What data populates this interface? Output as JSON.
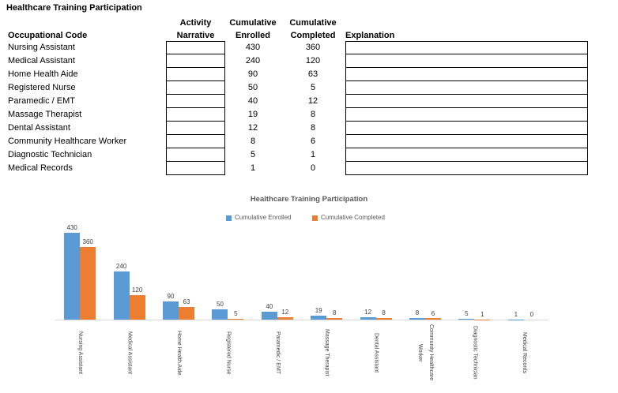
{
  "title": "Healthcare Training Participation",
  "table": {
    "headers": {
      "occupational_code": "Occupational Code",
      "activity_line1": "Activity",
      "activity_line2": "Narrative",
      "enrolled_line1": "Cumulative",
      "enrolled_line2": "Enrolled",
      "completed_line1": "Cumulative",
      "completed_line2": "Completed",
      "explanation": "Explanation"
    },
    "rows": [
      {
        "code": "Nursing Assistant",
        "enrolled": "430",
        "completed": "360",
        "narrative": "",
        "explanation": ""
      },
      {
        "code": "Medical Assistant",
        "enrolled": "240",
        "completed": "120",
        "narrative": "",
        "explanation": ""
      },
      {
        "code": "Home Health Aide",
        "enrolled": "90",
        "completed": "63",
        "narrative": "",
        "explanation": ""
      },
      {
        "code": "Registered Nurse",
        "enrolled": "50",
        "completed": "5",
        "narrative": "",
        "explanation": ""
      },
      {
        "code": "Paramedic / EMT",
        "enrolled": "40",
        "completed": "12",
        "narrative": "",
        "explanation": ""
      },
      {
        "code": "Massage Therapist",
        "enrolled": "19",
        "completed": "8",
        "narrative": "",
        "explanation": ""
      },
      {
        "code": "Dental Assistant",
        "enrolled": "12",
        "completed": "8",
        "narrative": "",
        "explanation": ""
      },
      {
        "code": "Community Healthcare Worker",
        "enrolled": "8",
        "completed": "6",
        "narrative": "",
        "explanation": ""
      },
      {
        "code": "Diagnostic Technician",
        "enrolled": "5",
        "completed": "1",
        "narrative": "",
        "explanation": ""
      },
      {
        "code": "Medical Records",
        "enrolled": "1",
        "completed": "0",
        "narrative": "",
        "explanation": ""
      }
    ]
  },
  "chart_data": {
    "type": "bar",
    "title": "Healthcare Training Participation",
    "categories": [
      "Nursing Assistant",
      "Medical Assistant",
      "Home Health Aide",
      "Registered Nurse",
      "Paramedic / EMT",
      "Massage Therapist",
      "Dental Assistant",
      "Community Healthcare Worker",
      "Diagnostic Technician",
      "Medical Records"
    ],
    "series": [
      {
        "name": "Cumulative Enrolled",
        "color": "#5B9BD5",
        "values": [
          430,
          240,
          90,
          50,
          40,
          19,
          12,
          8,
          5,
          1
        ]
      },
      {
        "name": "Cumulative Completed",
        "color": "#ED7D31",
        "values": [
          360,
          120,
          63,
          5,
          12,
          8,
          8,
          6,
          1,
          0
        ]
      }
    ],
    "ylim": [
      0,
      430
    ],
    "gridlines": false,
    "legend_position": "top",
    "data_labels": true,
    "xlabel": "",
    "ylabel": ""
  },
  "colors": {
    "bar_blue": "#5B9BD5",
    "bar_orange": "#ED7D31",
    "axis_line": "#D9D9D9",
    "chart_text": "#595959",
    "data_label_text": "#404040",
    "table_text": "#000000"
  }
}
